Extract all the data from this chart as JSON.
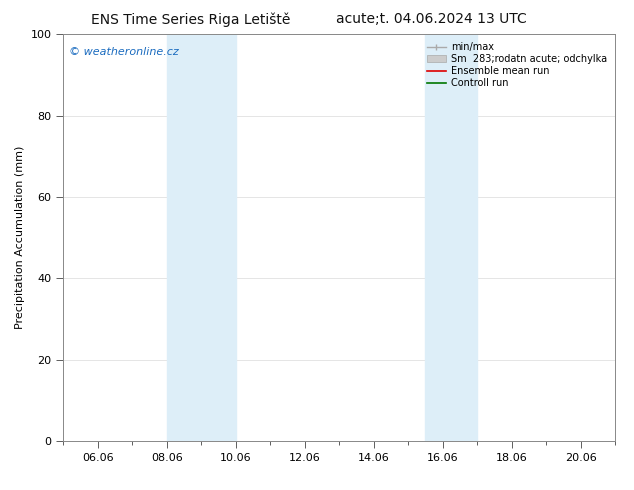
{
  "title_left": "ENS Time Series Riga Letiště",
  "title_right": "acute;t. 04.06.2024 13 UTC",
  "ylabel": "Precipitation Accumulation (mm)",
  "watermark": "© weatheronline.cz",
  "watermark_color": "#1a6bbf",
  "ylim": [
    0,
    100
  ],
  "xlim": [
    5.0,
    21.0
  ],
  "xticks": [
    6,
    8,
    10,
    12,
    14,
    16,
    18,
    20
  ],
  "xticklabels": [
    "06.06",
    "08.06",
    "10.06",
    "12.06",
    "14.06",
    "16.06",
    "18.06",
    "20.06"
  ],
  "yticks": [
    0,
    20,
    40,
    60,
    80,
    100
  ],
  "shade_regions": [
    {
      "xmin": 8.0,
      "xmax": 9.0
    },
    {
      "xmin": 9.0,
      "xmax": 10.1
    },
    {
      "xmin": 15.5,
      "xmax": 16.5
    },
    {
      "xmin": 16.5,
      "xmax": 17.1
    }
  ],
  "shade_color": "#ddeef8",
  "background_color": "#ffffff",
  "legend_labels": [
    "min/max",
    "Sm  283;rodatn acute; odchylka",
    "Ensemble mean run",
    "Controll run"
  ],
  "legend_colors": [
    "#aaaaaa",
    "#cccccc",
    "#dd0000",
    "#007700"
  ],
  "grid_color": "#e0e0e0",
  "spine_color": "#888888",
  "tick_color": "#444444",
  "title_fontsize": 10,
  "axis_fontsize": 8,
  "watermark_fontsize": 8,
  "ylabel_fontsize": 8
}
